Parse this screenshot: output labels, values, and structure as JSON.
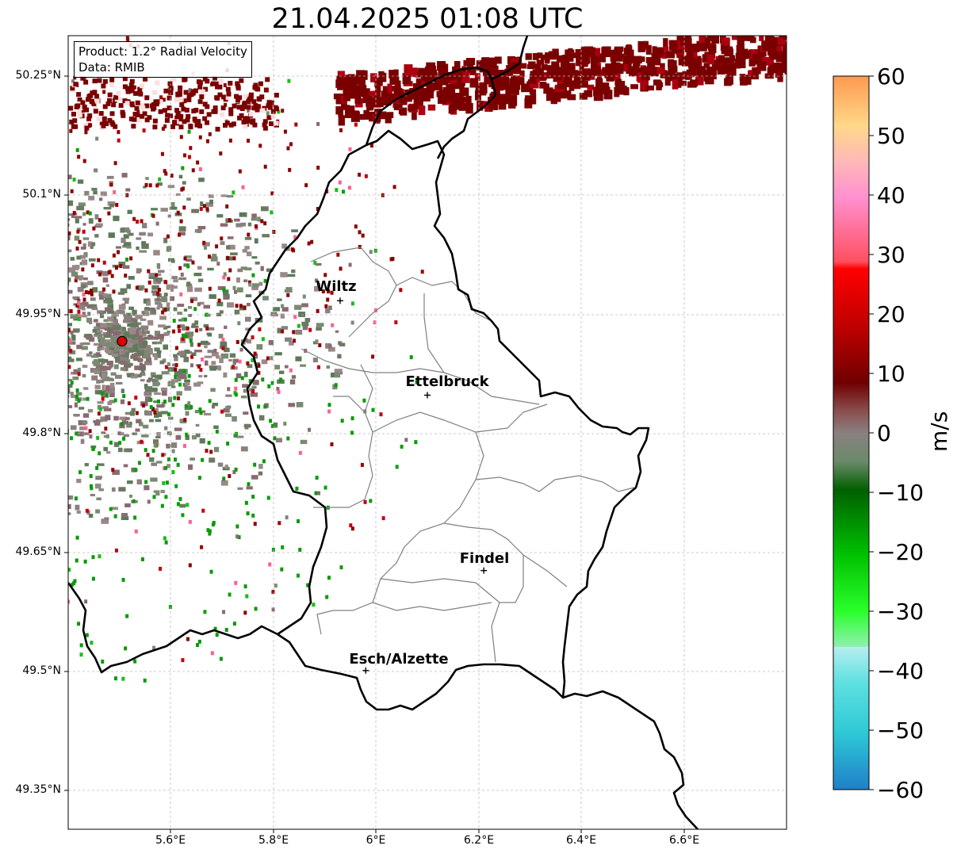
{
  "title": "21.04.2025 01:08 UTC",
  "info_box": {
    "line1": "Product: 1.2° Radial Velocity",
    "line2": "Data: RMIB"
  },
  "y_ticks": [
    "50.25°N",
    "50.1°N",
    "49.95°N",
    "49.8°N",
    "49.65°N",
    "49.5°N",
    "49.35°N"
  ],
  "x_ticks": [
    "5.6°E",
    "5.8°E",
    "6°E",
    "6.2°E",
    "6.4°E",
    "6.6°E"
  ],
  "cities": [
    {
      "name": "Wiltz",
      "lon": 5.93,
      "lat": 49.966
    },
    {
      "name": "Ettelbruck",
      "lon": 6.1,
      "lat": 49.847
    },
    {
      "name": "Findel",
      "lon": 6.21,
      "lat": 49.626
    },
    {
      "name": "Esch/Alzette",
      "lon": 5.98,
      "lat": 49.5
    }
  ],
  "radar_site": {
    "lon": 5.505,
    "lat": 49.915,
    "color": "#e00000"
  },
  "colorbar": {
    "label": "m/s",
    "min": -60,
    "max": 60,
    "ticks": [
      "60",
      "50",
      "40",
      "30",
      "20",
      "10",
      "0",
      "−10",
      "−20",
      "−30",
      "−40",
      "−50",
      "−60"
    ]
  },
  "map_extent": {
    "lon_min": 5.4,
    "lon_max": 6.8,
    "lat_min": 49.3,
    "lat_max": 50.3
  },
  "colors": {
    "border": "#000000",
    "cantons": "#808080",
    "grid": "#bbbbbb"
  }
}
